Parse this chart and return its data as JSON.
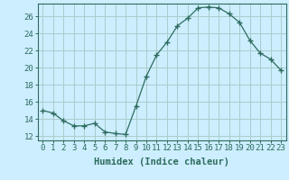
{
  "x": [
    0,
    1,
    2,
    3,
    4,
    5,
    6,
    7,
    8,
    9,
    10,
    11,
    12,
    13,
    14,
    15,
    16,
    17,
    18,
    19,
    20,
    21,
    22,
    23
  ],
  "y": [
    15.0,
    14.7,
    13.8,
    13.2,
    13.2,
    13.5,
    12.5,
    12.3,
    12.2,
    15.5,
    19.0,
    21.5,
    23.0,
    24.9,
    25.8,
    27.0,
    27.1,
    27.0,
    26.3,
    25.3,
    23.2,
    21.7,
    21.0,
    19.7
  ],
  "line_color": "#2e6b5e",
  "marker": "+",
  "marker_size": 4,
  "marker_lw": 1.0,
  "bg_color": "#cceeff",
  "grid_color": "#aacccc",
  "xlabel": "Humidex (Indice chaleur)",
  "xlim": [
    -0.5,
    23.5
  ],
  "ylim": [
    11.5,
    27.5
  ],
  "yticks": [
    12,
    14,
    16,
    18,
    20,
    22,
    24,
    26
  ],
  "xticks": [
    0,
    1,
    2,
    3,
    4,
    5,
    6,
    7,
    8,
    9,
    10,
    11,
    12,
    13,
    14,
    15,
    16,
    17,
    18,
    19,
    20,
    21,
    22,
    23
  ],
  "tick_fontsize": 6.5,
  "label_fontsize": 7.5
}
